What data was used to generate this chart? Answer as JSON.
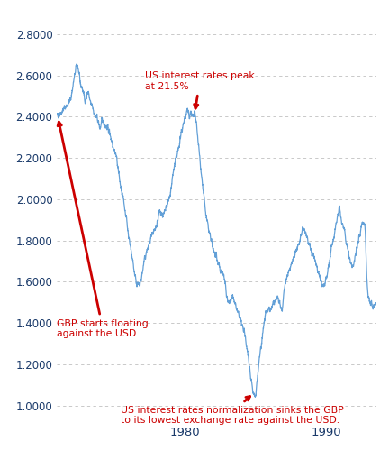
{
  "line_color": "#5b9bd5",
  "annotation_color": "#cc0000",
  "background_color": "#ffffff",
  "grid_color": "#b0b0b0",
  "tick_label_color": "#1a3a6a",
  "ylim": [
    0.92,
    2.92
  ],
  "yticks": [
    1.0,
    1.2,
    1.4,
    1.6,
    1.8,
    2.0,
    2.2,
    2.4,
    2.6,
    2.8
  ],
  "ytick_labels": [
    "1.0000",
    "1.2000",
    "1.4000",
    "1.6000",
    "1.8000",
    "2.0000",
    "2.2000",
    "2.4000",
    "2.6000",
    "2.8000"
  ],
  "xlim": [
    1971.0,
    1993.5
  ],
  "xticks": [
    1980,
    1990
  ],
  "waypoints": [
    [
      1971.0,
      2.4
    ],
    [
      1971.1,
      2.41
    ],
    [
      1971.25,
      2.42
    ],
    [
      1971.5,
      2.44
    ],
    [
      1971.75,
      2.46
    ],
    [
      1972.0,
      2.5
    ],
    [
      1972.1,
      2.54
    ],
    [
      1972.2,
      2.58
    ],
    [
      1972.3,
      2.62
    ],
    [
      1972.45,
      2.65
    ],
    [
      1972.55,
      2.6
    ],
    [
      1972.7,
      2.55
    ],
    [
      1972.85,
      2.52
    ],
    [
      1973.0,
      2.48
    ],
    [
      1973.1,
      2.5
    ],
    [
      1973.2,
      2.52
    ],
    [
      1973.3,
      2.48
    ],
    [
      1973.5,
      2.45
    ],
    [
      1973.7,
      2.4
    ],
    [
      1973.9,
      2.38
    ],
    [
      1974.0,
      2.35
    ],
    [
      1974.2,
      2.38
    ],
    [
      1974.4,
      2.36
    ],
    [
      1974.6,
      2.34
    ],
    [
      1974.8,
      2.3
    ],
    [
      1975.0,
      2.25
    ],
    [
      1975.2,
      2.2
    ],
    [
      1975.4,
      2.1
    ],
    [
      1975.6,
      2.02
    ],
    [
      1975.8,
      1.95
    ],
    [
      1976.0,
      1.85
    ],
    [
      1976.15,
      1.78
    ],
    [
      1976.3,
      1.72
    ],
    [
      1976.45,
      1.65
    ],
    [
      1976.6,
      1.6
    ],
    [
      1976.75,
      1.58
    ],
    [
      1976.9,
      1.6
    ],
    [
      1977.1,
      1.68
    ],
    [
      1977.3,
      1.74
    ],
    [
      1977.5,
      1.78
    ],
    [
      1977.7,
      1.82
    ],
    [
      1977.9,
      1.85
    ],
    [
      1978.1,
      1.9
    ],
    [
      1978.3,
      1.94
    ],
    [
      1978.5,
      1.92
    ],
    [
      1978.7,
      1.96
    ],
    [
      1978.9,
      2.0
    ],
    [
      1979.0,
      2.04
    ],
    [
      1979.1,
      2.08
    ],
    [
      1979.2,
      2.13
    ],
    [
      1979.35,
      2.18
    ],
    [
      1979.5,
      2.22
    ],
    [
      1979.65,
      2.28
    ],
    [
      1979.8,
      2.33
    ],
    [
      1979.9,
      2.37
    ],
    [
      1980.0,
      2.39
    ],
    [
      1980.1,
      2.41
    ],
    [
      1980.2,
      2.43
    ],
    [
      1980.3,
      2.4
    ],
    [
      1980.4,
      2.42
    ],
    [
      1980.5,
      2.41
    ],
    [
      1980.6,
      2.4
    ],
    [
      1980.7,
      2.42
    ],
    [
      1980.75,
      2.4
    ],
    [
      1980.85,
      2.35
    ],
    [
      1980.95,
      2.28
    ],
    [
      1981.1,
      2.18
    ],
    [
      1981.25,
      2.08
    ],
    [
      1981.4,
      1.98
    ],
    [
      1981.55,
      1.9
    ],
    [
      1981.7,
      1.85
    ],
    [
      1981.85,
      1.8
    ],
    [
      1982.0,
      1.76
    ],
    [
      1982.2,
      1.72
    ],
    [
      1982.4,
      1.68
    ],
    [
      1982.6,
      1.65
    ],
    [
      1982.8,
      1.62
    ],
    [
      1983.0,
      1.52
    ],
    [
      1983.2,
      1.5
    ],
    [
      1983.4,
      1.52
    ],
    [
      1983.6,
      1.48
    ],
    [
      1983.8,
      1.44
    ],
    [
      1984.0,
      1.4
    ],
    [
      1984.2,
      1.35
    ],
    [
      1984.4,
      1.28
    ],
    [
      1984.55,
      1.2
    ],
    [
      1984.7,
      1.12
    ],
    [
      1984.85,
      1.06
    ],
    [
      1985.0,
      1.05
    ],
    [
      1985.05,
      1.08
    ],
    [
      1985.1,
      1.12
    ],
    [
      1985.2,
      1.18
    ],
    [
      1985.3,
      1.25
    ],
    [
      1985.45,
      1.32
    ],
    [
      1985.6,
      1.4
    ],
    [
      1985.75,
      1.45
    ],
    [
      1985.9,
      1.46
    ],
    [
      1986.1,
      1.48
    ],
    [
      1986.3,
      1.5
    ],
    [
      1986.5,
      1.52
    ],
    [
      1986.7,
      1.5
    ],
    [
      1986.9,
      1.48
    ],
    [
      1987.0,
      1.55
    ],
    [
      1987.2,
      1.62
    ],
    [
      1987.4,
      1.66
    ],
    [
      1987.6,
      1.7
    ],
    [
      1987.8,
      1.74
    ],
    [
      1988.0,
      1.78
    ],
    [
      1988.2,
      1.82
    ],
    [
      1988.4,
      1.85
    ],
    [
      1988.6,
      1.82
    ],
    [
      1988.8,
      1.78
    ],
    [
      1989.0,
      1.74
    ],
    [
      1989.2,
      1.7
    ],
    [
      1989.4,
      1.65
    ],
    [
      1989.6,
      1.6
    ],
    [
      1989.8,
      1.58
    ],
    [
      1990.0,
      1.62
    ],
    [
      1990.2,
      1.7
    ],
    [
      1990.4,
      1.78
    ],
    [
      1990.6,
      1.85
    ],
    [
      1990.8,
      1.92
    ],
    [
      1990.9,
      1.96
    ],
    [
      1991.0,
      1.92
    ],
    [
      1991.2,
      1.86
    ],
    [
      1991.4,
      1.78
    ],
    [
      1991.6,
      1.72
    ],
    [
      1991.8,
      1.68
    ],
    [
      1992.0,
      1.72
    ],
    [
      1992.2,
      1.78
    ],
    [
      1992.4,
      1.85
    ],
    [
      1992.6,
      1.9
    ],
    [
      1992.75,
      1.8
    ],
    [
      1992.85,
      1.6
    ],
    [
      1992.95,
      1.52
    ],
    [
      1993.1,
      1.5
    ],
    [
      1993.3,
      1.48
    ],
    [
      1993.5,
      1.5
    ]
  ],
  "noise_seed": 42,
  "noise_scale": 0.022,
  "noise_window": 8
}
